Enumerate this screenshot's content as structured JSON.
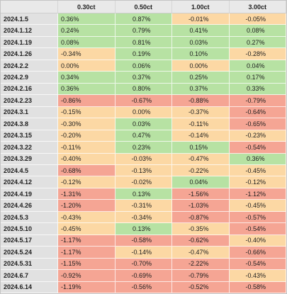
{
  "chart_data": {
    "type": "table",
    "columns": [
      "0.30ct",
      "0.50ct",
      "1.00ct",
      "3.00ct"
    ],
    "palette": {
      "green": "#b7e2a3",
      "peach": "#fcd8a4",
      "red": "#f5a594",
      "label_bg": "#e1e1e1",
      "header_bg": "#e9e9e9"
    },
    "rows": [
      {
        "date": "2024.1.5",
        "values": [
          "0.36%",
          "0.87%",
          "-0.01%",
          "-0.05%"
        ],
        "tones": [
          "green",
          "green",
          "peach",
          "peach"
        ]
      },
      {
        "date": "2024.1.12",
        "values": [
          "0.24%",
          "0.79%",
          "0.41%",
          "0.08%"
        ],
        "tones": [
          "green",
          "green",
          "green",
          "green"
        ]
      },
      {
        "date": "2024.1.19",
        "values": [
          "0.08%",
          "0.81%",
          "0.03%",
          "0.27%"
        ],
        "tones": [
          "green",
          "green",
          "green",
          "green"
        ]
      },
      {
        "date": "2024.1.26",
        "values": [
          "-0.34%",
          "0.19%",
          "0.10%",
          "-0.28%"
        ],
        "tones": [
          "peach",
          "green",
          "green",
          "peach"
        ]
      },
      {
        "date": "2024.2.2",
        "values": [
          "0.00%",
          "0.06%",
          "0.00%",
          "0.04%"
        ],
        "tones": [
          "peach",
          "green",
          "peach",
          "green"
        ]
      },
      {
        "date": "2024.2.9",
        "values": [
          "0.34%",
          "0.37%",
          "0.25%",
          "0.17%"
        ],
        "tones": [
          "green",
          "green",
          "green",
          "green"
        ]
      },
      {
        "date": "2024.2.16",
        "values": [
          "0.36%",
          "0.80%",
          "0.37%",
          "0.33%"
        ],
        "tones": [
          "green",
          "green",
          "green",
          "green"
        ]
      },
      {
        "date": "2024.2.23",
        "values": [
          "-0.86%",
          "-0.67%",
          "-0.88%",
          "-0.79%"
        ],
        "tones": [
          "red",
          "red",
          "red",
          "red"
        ]
      },
      {
        "date": "2024.3.1",
        "values": [
          "-0.15%",
          "0.00%",
          "-0.37%",
          "-0.64%"
        ],
        "tones": [
          "peach",
          "peach",
          "peach",
          "red"
        ]
      },
      {
        "date": "2024.3.8",
        "values": [
          "-0.30%",
          "0.03%",
          "-0.11%",
          "-0.65%"
        ],
        "tones": [
          "peach",
          "green",
          "peach",
          "red"
        ]
      },
      {
        "date": "2024.3.15",
        "values": [
          "-0.20%",
          "0.47%",
          "-0.14%",
          "-0.23%"
        ],
        "tones": [
          "peach",
          "green",
          "peach",
          "peach"
        ]
      },
      {
        "date": "2024.3.22",
        "values": [
          "-0.11%",
          "0.23%",
          "0.15%",
          "-0.54%"
        ],
        "tones": [
          "peach",
          "green",
          "green",
          "red"
        ]
      },
      {
        "date": "2024.3.29",
        "values": [
          "-0.40%",
          "-0.03%",
          "-0.47%",
          "0.36%"
        ],
        "tones": [
          "peach",
          "peach",
          "peach",
          "green"
        ]
      },
      {
        "date": "2024.4.5",
        "values": [
          "-0.68%",
          "-0.13%",
          "-0.22%",
          "-0.45%"
        ],
        "tones": [
          "red",
          "peach",
          "peach",
          "peach"
        ]
      },
      {
        "date": "2024.4.12",
        "values": [
          "-0.12%",
          "-0.02%",
          "0.04%",
          "-0.12%"
        ],
        "tones": [
          "peach",
          "peach",
          "green",
          "peach"
        ]
      },
      {
        "date": "2024.4.19",
        "values": [
          "-1.31%",
          "0.13%",
          "-1.56%",
          "-1.12%"
        ],
        "tones": [
          "red",
          "green",
          "red",
          "red"
        ]
      },
      {
        "date": "2024.4.26",
        "values": [
          "-1.20%",
          "-0.31%",
          "-1.03%",
          "-0.45%"
        ],
        "tones": [
          "red",
          "peach",
          "red",
          "peach"
        ]
      },
      {
        "date": "2024.5.3",
        "values": [
          "-0.43%",
          "-0.34%",
          "-0.87%",
          "-0.57%"
        ],
        "tones": [
          "peach",
          "peach",
          "red",
          "red"
        ]
      },
      {
        "date": "2024.5.10",
        "values": [
          "-0.45%",
          "0.13%",
          "-0.35%",
          "-0.54%"
        ],
        "tones": [
          "peach",
          "green",
          "peach",
          "red"
        ]
      },
      {
        "date": "2024.5.17",
        "values": [
          "-1.17%",
          "-0.58%",
          "-0.62%",
          "-0.40%"
        ],
        "tones": [
          "red",
          "red",
          "red",
          "peach"
        ]
      },
      {
        "date": "2024.5.24",
        "values": [
          "-1.17%",
          "-0.14%",
          "-0.47%",
          "-0.66%"
        ],
        "tones": [
          "red",
          "peach",
          "peach",
          "red"
        ]
      },
      {
        "date": "2024.5.31",
        "values": [
          "-1.15%",
          "-0.70%",
          "-2.22%",
          "-0.54%"
        ],
        "tones": [
          "red",
          "red",
          "red",
          "red"
        ]
      },
      {
        "date": "2024.6.7",
        "values": [
          "-0.92%",
          "-0.69%",
          "-0.79%",
          "-0.43%"
        ],
        "tones": [
          "red",
          "red",
          "red",
          "peach"
        ]
      },
      {
        "date": "2024.6.14",
        "values": [
          "-1.19%",
          "-0.56%",
          "-0.52%",
          "-0.58%"
        ],
        "tones": [
          "red",
          "red",
          "red",
          "red"
        ]
      }
    ]
  }
}
